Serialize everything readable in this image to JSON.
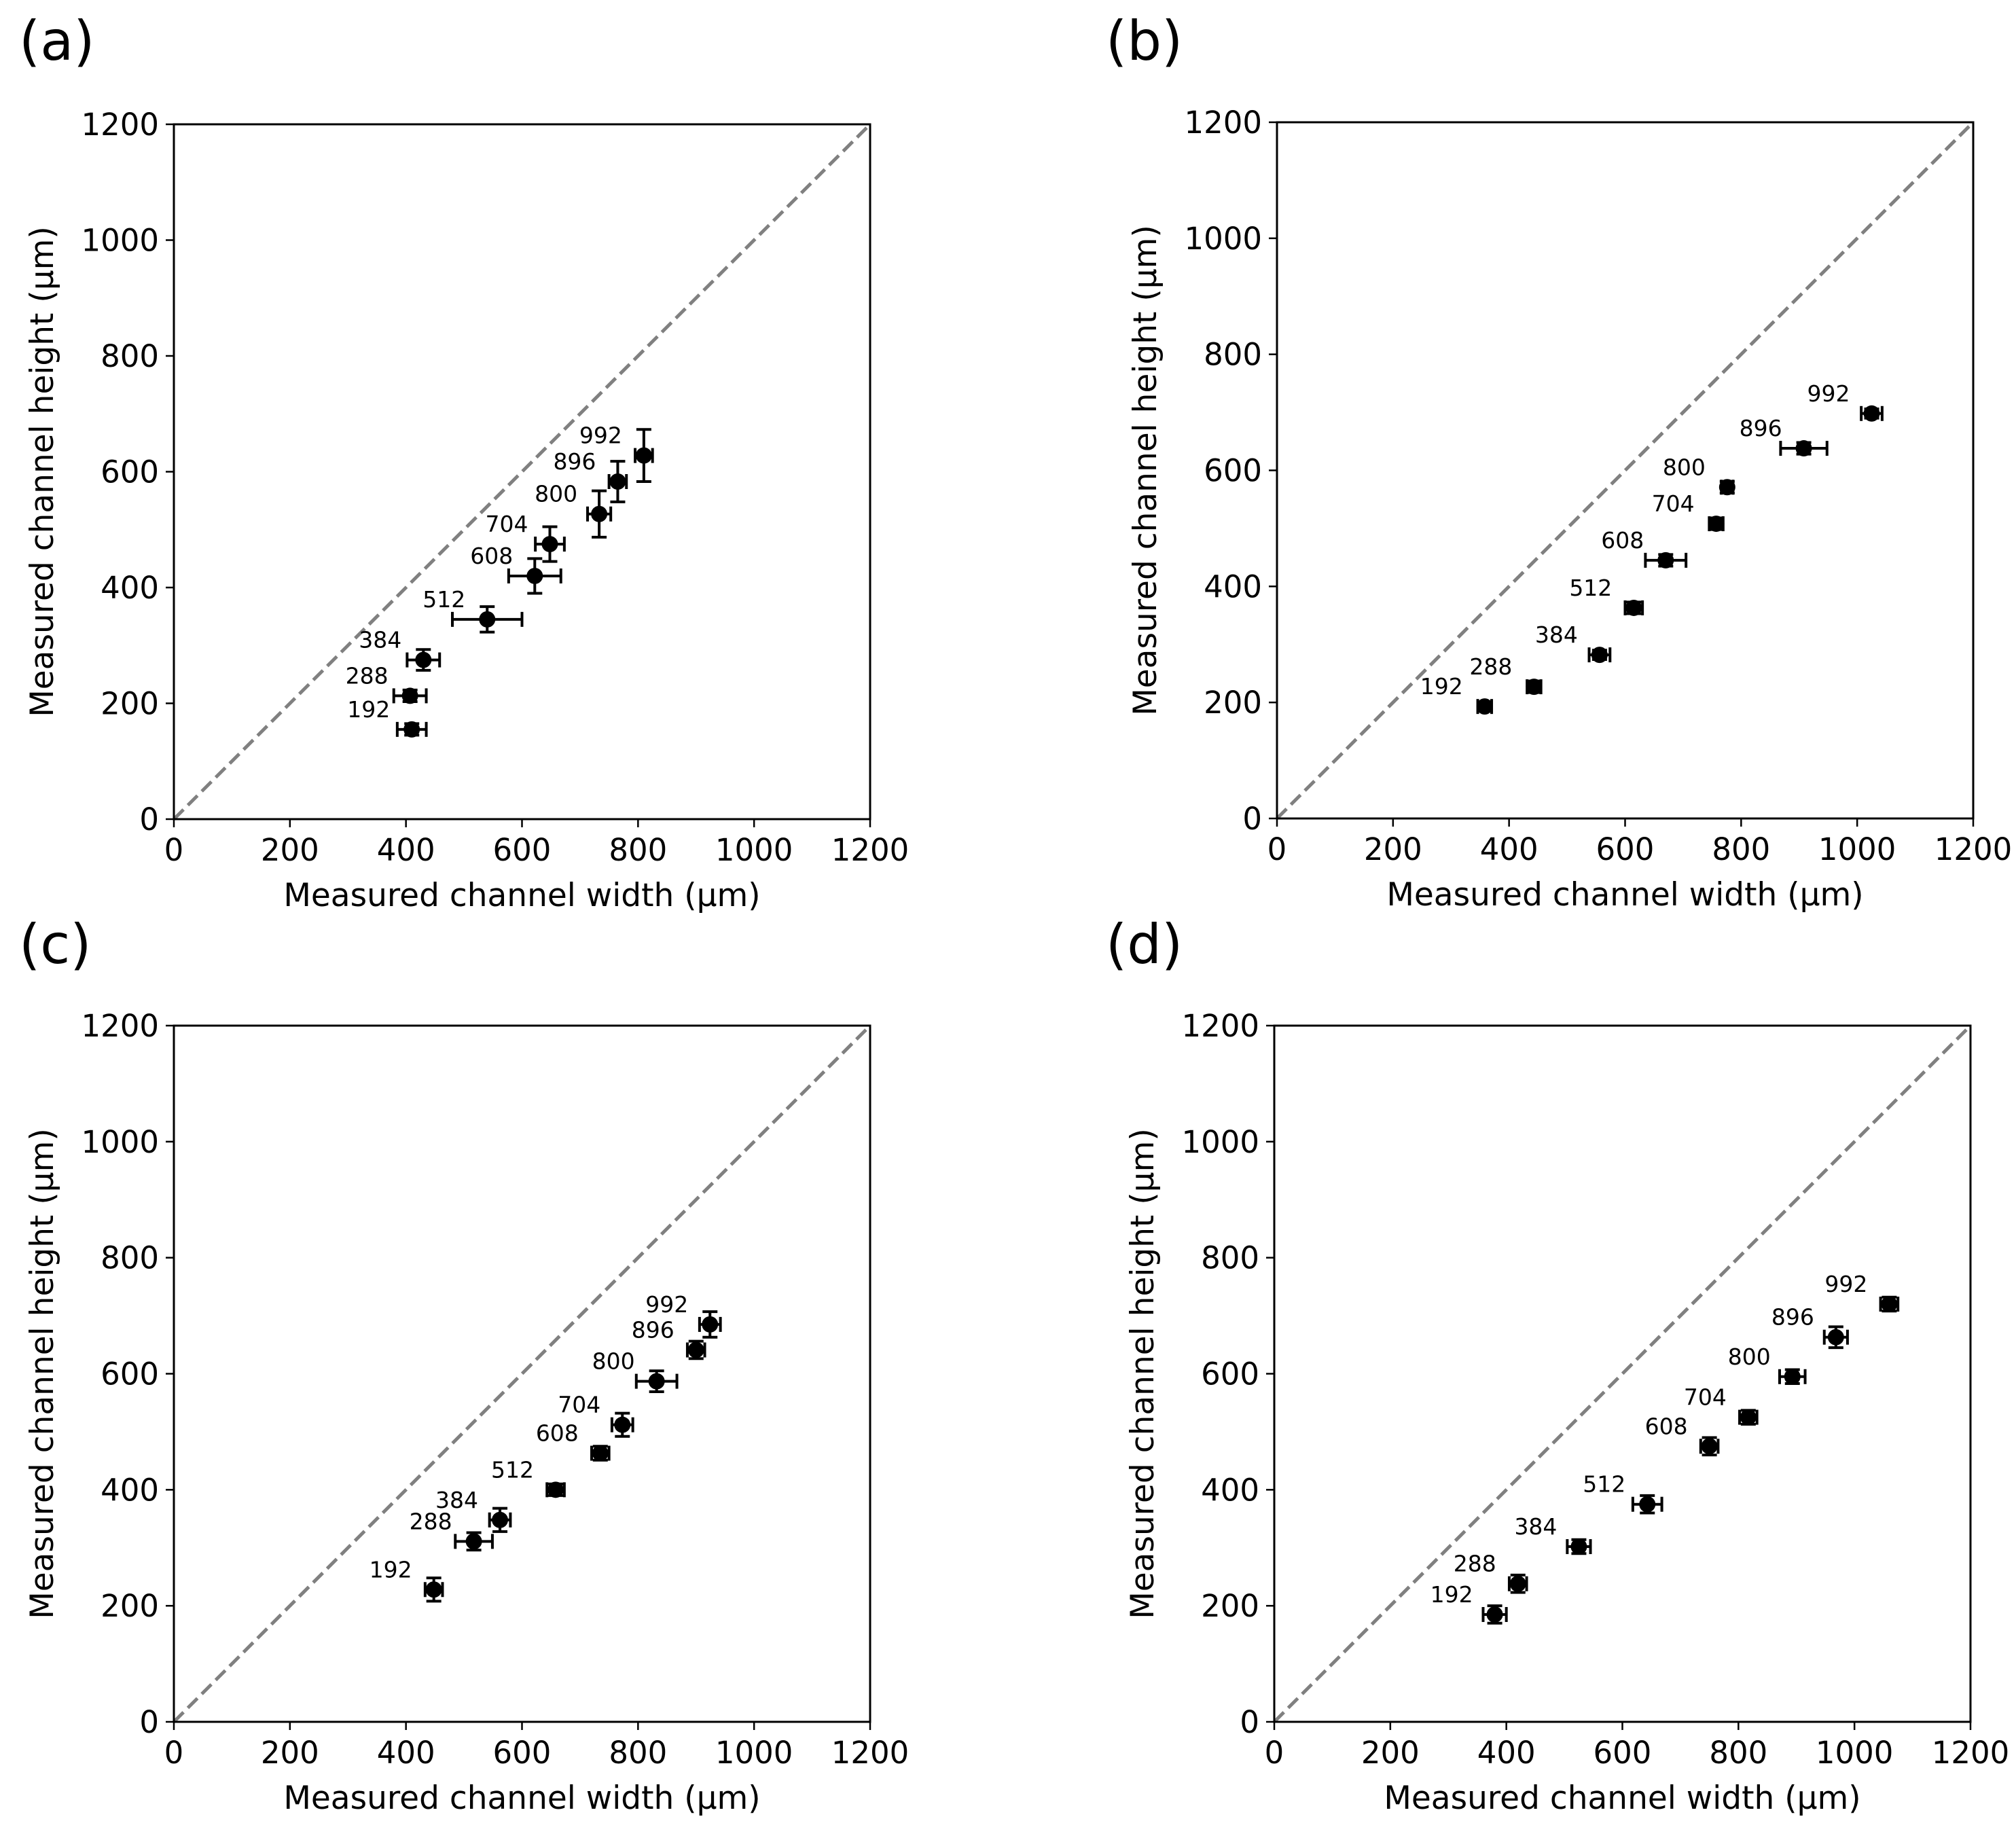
{
  "figure": {
    "colors": {
      "background": "#ffffff",
      "axis": "#000000",
      "marker": "#000000",
      "reference_line": "#808080"
    }
  },
  "chart_data": [
    {
      "panel_label": "(a)",
      "type": "scatter",
      "title": "",
      "xlabel": "Measured channel width (μm)",
      "ylabel": "Measured channel height (μm)",
      "xlim": [
        0,
        1200
      ],
      "ylim": [
        0,
        1200
      ],
      "xticks": [
        "0",
        "200",
        "400",
        "600",
        "800",
        "1000",
        "1200"
      ],
      "yticks": [
        "0",
        "200",
        "400",
        "600",
        "800",
        "1000",
        "1200"
      ],
      "grid": false,
      "reference_line": {
        "style": "dashed",
        "color": "#808080",
        "from": [
          0,
          0
        ],
        "to": [
          1200,
          1200
        ]
      },
      "points": [
        {
          "label": "192",
          "x": 410,
          "y": 155,
          "xerr": 25,
          "yerr": 10
        },
        {
          "label": "288",
          "x": 407,
          "y": 213,
          "xerr": 28,
          "yerr": 10
        },
        {
          "label": "384",
          "x": 430,
          "y": 275,
          "xerr": 28,
          "yerr": 18
        },
        {
          "label": "512",
          "x": 540,
          "y": 345,
          "xerr": 60,
          "yerr": 22
        },
        {
          "label": "608",
          "x": 622,
          "y": 420,
          "xerr": 45,
          "yerr": 30
        },
        {
          "label": "704",
          "x": 648,
          "y": 475,
          "xerr": 25,
          "yerr": 30
        },
        {
          "label": "800",
          "x": 733,
          "y": 527,
          "xerr": 20,
          "yerr": 40
        },
        {
          "label": "896",
          "x": 765,
          "y": 583,
          "xerr": 15,
          "yerr": 35
        },
        {
          "label": "992",
          "x": 810,
          "y": 628,
          "xerr": 15,
          "yerr": 45
        }
      ]
    },
    {
      "panel_label": "(b)",
      "type": "scatter",
      "title": "",
      "xlabel": "Measured channel width (μm)",
      "ylabel": "Measured channel height (μm)",
      "xlim": [
        0,
        1200
      ],
      "ylim": [
        0,
        1200
      ],
      "xticks": [
        "0",
        "200",
        "400",
        "600",
        "800",
        "1000",
        "1200"
      ],
      "yticks": [
        "0",
        "200",
        "400",
        "600",
        "800",
        "1000",
        "1200"
      ],
      "grid": false,
      "reference_line": {
        "style": "dashed",
        "color": "#808080",
        "from": [
          0,
          0
        ],
        "to": [
          1200,
          1200
        ]
      },
      "points": [
        {
          "label": "192",
          "x": 358,
          "y": 193,
          "xerr": 12,
          "yerr": 8
        },
        {
          "label": "288",
          "x": 443,
          "y": 227,
          "xerr": 12,
          "yerr": 10
        },
        {
          "label": "384",
          "x": 556,
          "y": 282,
          "xerr": 18,
          "yerr": 8
        },
        {
          "label": "512",
          "x": 615,
          "y": 363,
          "xerr": 15,
          "yerr": 10
        },
        {
          "label": "608",
          "x": 670,
          "y": 445,
          "xerr": 35,
          "yerr": 10
        },
        {
          "label": "704",
          "x": 757,
          "y": 508,
          "xerr": 12,
          "yerr": 10
        },
        {
          "label": "800",
          "x": 776,
          "y": 571,
          "xerr": 10,
          "yerr": 10
        },
        {
          "label": "896",
          "x": 908,
          "y": 638,
          "xerr": 40,
          "yerr": 10
        },
        {
          "label": "992",
          "x": 1025,
          "y": 698,
          "xerr": 18,
          "yerr": 8
        }
      ]
    },
    {
      "panel_label": "(c)",
      "type": "scatter",
      "title": "",
      "xlabel": "Measured channel width (μm)",
      "ylabel": "Measured channel height (μm)",
      "xlim": [
        0,
        1200
      ],
      "ylim": [
        0,
        1200
      ],
      "xticks": [
        "0",
        "200",
        "400",
        "600",
        "800",
        "1000",
        "1200"
      ],
      "yticks": [
        "0",
        "200",
        "400",
        "600",
        "800",
        "1000",
        "1200"
      ],
      "grid": false,
      "reference_line": {
        "style": "dashed",
        "color": "#808080",
        "from": [
          0,
          0
        ],
        "to": [
          1200,
          1200
        ]
      },
      "points": [
        {
          "label": "192",
          "x": 448,
          "y": 228,
          "xerr": 15,
          "yerr": 20
        },
        {
          "label": "288",
          "x": 517,
          "y": 311,
          "xerr": 32,
          "yerr": 15
        },
        {
          "label": "384",
          "x": 562,
          "y": 348,
          "xerr": 18,
          "yerr": 20
        },
        {
          "label": "512",
          "x": 658,
          "y": 400,
          "xerr": 15,
          "yerr": 10
        },
        {
          "label": "608",
          "x": 735,
          "y": 463,
          "xerr": 15,
          "yerr": 12
        },
        {
          "label": "704",
          "x": 773,
          "y": 512,
          "xerr": 18,
          "yerr": 20
        },
        {
          "label": "800",
          "x": 832,
          "y": 587,
          "xerr": 35,
          "yerr": 18
        },
        {
          "label": "896",
          "x": 900,
          "y": 641,
          "xerr": 15,
          "yerr": 15
        },
        {
          "label": "992",
          "x": 924,
          "y": 685,
          "xerr": 18,
          "yerr": 22
        }
      ]
    },
    {
      "panel_label": "(d)",
      "type": "scatter",
      "title": "",
      "xlabel": "Measured channel width (μm)",
      "ylabel": "Measured channel height (μm)",
      "xlim": [
        0,
        1200
      ],
      "ylim": [
        0,
        1200
      ],
      "xticks": [
        "0",
        "200",
        "400",
        "600",
        "800",
        "1000",
        "1200"
      ],
      "yticks": [
        "0",
        "200",
        "400",
        "600",
        "800",
        "1000",
        "1200"
      ],
      "grid": false,
      "reference_line": {
        "style": "dashed",
        "color": "#808080",
        "from": [
          0,
          0
        ],
        "to": [
          1200,
          1200
        ]
      },
      "points": [
        {
          "label": "192",
          "x": 380,
          "y": 185,
          "xerr": 20,
          "yerr": 15
        },
        {
          "label": "288",
          "x": 420,
          "y": 238,
          "xerr": 15,
          "yerr": 15
        },
        {
          "label": "384",
          "x": 525,
          "y": 302,
          "xerr": 20,
          "yerr": 12
        },
        {
          "label": "512",
          "x": 643,
          "y": 375,
          "xerr": 25,
          "yerr": 15
        },
        {
          "label": "608",
          "x": 750,
          "y": 475,
          "xerr": 15,
          "yerr": 15
        },
        {
          "label": "704",
          "x": 817,
          "y": 525,
          "xerr": 15,
          "yerr": 12
        },
        {
          "label": "800",
          "x": 893,
          "y": 595,
          "xerr": 22,
          "yerr": 12
        },
        {
          "label": "896",
          "x": 968,
          "y": 663,
          "xerr": 20,
          "yerr": 18
        },
        {
          "label": "992",
          "x": 1060,
          "y": 720,
          "xerr": 15,
          "yerr": 12
        }
      ]
    }
  ]
}
